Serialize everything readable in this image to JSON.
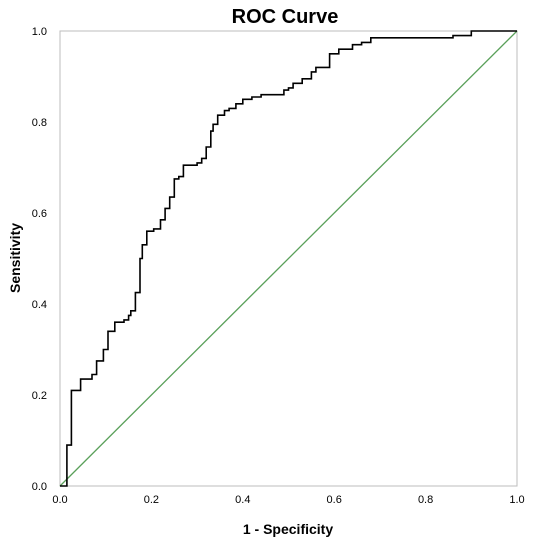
{
  "chart_data": {
    "type": "line",
    "title": "ROC Curve",
    "xlabel": "1 - Specificity",
    "ylabel": "Sensitivity",
    "xlim": [
      0,
      1
    ],
    "ylim": [
      0,
      1
    ],
    "x_ticks": [
      "0.0",
      "0.2",
      "0.4",
      "0.6",
      "0.8",
      "1.0"
    ],
    "y_ticks": [
      "0.0",
      "0.2",
      "0.4",
      "0.6",
      "0.8",
      "1.0"
    ],
    "grid": false,
    "legend": "none",
    "series": [
      {
        "role": "roc",
        "color": "#000000",
        "step": true,
        "points": [
          [
            0.0,
            0.0
          ],
          [
            0.015,
            0.0
          ],
          [
            0.015,
            0.09
          ],
          [
            0.025,
            0.09
          ],
          [
            0.025,
            0.21
          ],
          [
            0.045,
            0.21
          ],
          [
            0.045,
            0.235
          ],
          [
            0.07,
            0.235
          ],
          [
            0.07,
            0.245
          ],
          [
            0.08,
            0.245
          ],
          [
            0.08,
            0.275
          ],
          [
            0.095,
            0.275
          ],
          [
            0.095,
            0.3
          ],
          [
            0.105,
            0.3
          ],
          [
            0.105,
            0.34
          ],
          [
            0.12,
            0.34
          ],
          [
            0.12,
            0.36
          ],
          [
            0.14,
            0.36
          ],
          [
            0.14,
            0.365
          ],
          [
            0.15,
            0.365
          ],
          [
            0.15,
            0.375
          ],
          [
            0.155,
            0.375
          ],
          [
            0.155,
            0.385
          ],
          [
            0.165,
            0.385
          ],
          [
            0.165,
            0.425
          ],
          [
            0.175,
            0.425
          ],
          [
            0.175,
            0.5
          ],
          [
            0.18,
            0.5
          ],
          [
            0.18,
            0.53
          ],
          [
            0.19,
            0.53
          ],
          [
            0.19,
            0.56
          ],
          [
            0.205,
            0.56
          ],
          [
            0.205,
            0.565
          ],
          [
            0.22,
            0.565
          ],
          [
            0.22,
            0.585
          ],
          [
            0.23,
            0.585
          ],
          [
            0.23,
            0.61
          ],
          [
            0.24,
            0.61
          ],
          [
            0.24,
            0.635
          ],
          [
            0.25,
            0.635
          ],
          [
            0.25,
            0.675
          ],
          [
            0.26,
            0.675
          ],
          [
            0.26,
            0.68
          ],
          [
            0.27,
            0.68
          ],
          [
            0.27,
            0.705
          ],
          [
            0.3,
            0.705
          ],
          [
            0.3,
            0.71
          ],
          [
            0.31,
            0.71
          ],
          [
            0.31,
            0.72
          ],
          [
            0.32,
            0.72
          ],
          [
            0.32,
            0.745
          ],
          [
            0.33,
            0.745
          ],
          [
            0.33,
            0.78
          ],
          [
            0.335,
            0.78
          ],
          [
            0.335,
            0.795
          ],
          [
            0.345,
            0.795
          ],
          [
            0.345,
            0.815
          ],
          [
            0.36,
            0.815
          ],
          [
            0.36,
            0.825
          ],
          [
            0.37,
            0.825
          ],
          [
            0.37,
            0.83
          ],
          [
            0.385,
            0.83
          ],
          [
            0.385,
            0.84
          ],
          [
            0.4,
            0.84
          ],
          [
            0.4,
            0.85
          ],
          [
            0.42,
            0.85
          ],
          [
            0.42,
            0.855
          ],
          [
            0.44,
            0.855
          ],
          [
            0.44,
            0.86
          ],
          [
            0.49,
            0.86
          ],
          [
            0.49,
            0.87
          ],
          [
            0.5,
            0.87
          ],
          [
            0.5,
            0.875
          ],
          [
            0.51,
            0.875
          ],
          [
            0.51,
            0.885
          ],
          [
            0.53,
            0.885
          ],
          [
            0.53,
            0.895
          ],
          [
            0.55,
            0.895
          ],
          [
            0.55,
            0.91
          ],
          [
            0.56,
            0.91
          ],
          [
            0.56,
            0.92
          ],
          [
            0.59,
            0.92
          ],
          [
            0.59,
            0.95
          ],
          [
            0.61,
            0.95
          ],
          [
            0.61,
            0.96
          ],
          [
            0.64,
            0.96
          ],
          [
            0.64,
            0.97
          ],
          [
            0.66,
            0.97
          ],
          [
            0.66,
            0.975
          ],
          [
            0.68,
            0.975
          ],
          [
            0.68,
            0.985
          ],
          [
            0.86,
            0.985
          ],
          [
            0.86,
            0.99
          ],
          [
            0.9,
            0.99
          ],
          [
            0.9,
            1.0
          ],
          [
            1.0,
            1.0
          ]
        ]
      },
      {
        "role": "reference",
        "color": "#5aa05a",
        "step": false,
        "points": [
          [
            0,
            0
          ],
          [
            1,
            1
          ]
        ]
      }
    ]
  }
}
